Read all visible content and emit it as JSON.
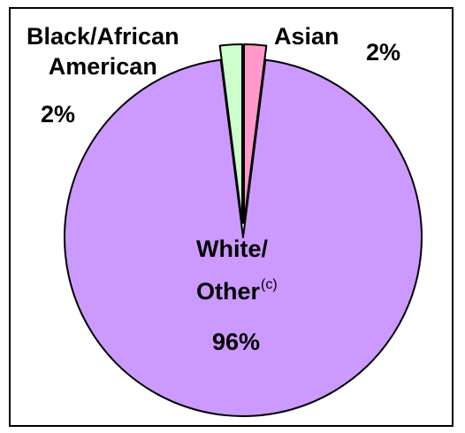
{
  "chart_data": {
    "type": "pie",
    "title": "",
    "slices": [
      {
        "name": "White/Other",
        "name_line1": "White/",
        "name_line2": "Other",
        "superscript": "(c)",
        "value": 96,
        "value_label": "96%",
        "color": "#cc99ff",
        "exploded": false
      },
      {
        "name": "Black/African American",
        "name_line1": "Black/African",
        "name_line2": "American",
        "value": 2,
        "value_label": "2%",
        "color": "#ccffcc",
        "exploded": true
      },
      {
        "name": "Asian",
        "name_line1": "Asian",
        "value": 2,
        "value_label": "2%",
        "color": "#ff99cc",
        "exploded": true
      }
    ],
    "legend": "none",
    "outline_color": "#000000"
  }
}
